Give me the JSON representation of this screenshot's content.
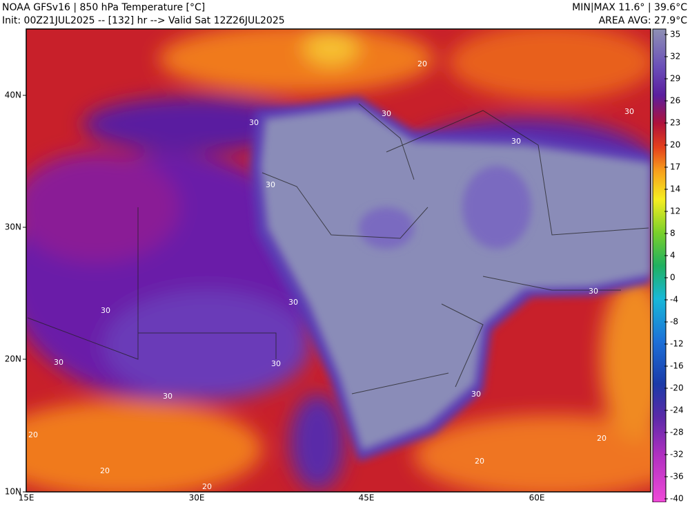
{
  "header": {
    "title": "NOAA GFSv16 | 850 hPa Temperature [°C]",
    "init": "Init: 00Z21JUL2025 -- [132] hr --> Valid Sat 12Z26JUL2025",
    "minmax": "MIN|MAX 11.6° | 39.6°C",
    "area_avg": "AREA AVG: 27.9°C"
  },
  "colorbar": {
    "labels": [
      35,
      32,
      29,
      26,
      23,
      20,
      17,
      14,
      12,
      8,
      4,
      0,
      -4,
      -8,
      -12,
      -16,
      -20,
      -24,
      -28,
      -32,
      -36,
      -40
    ]
  },
  "lat_labels": [
    "40N",
    "30N",
    "20N",
    "10N"
  ],
  "lon_labels": [
    "15E",
    "30E",
    "45E",
    "60E"
  ],
  "contour_labels": [
    "30",
    "30",
    "30",
    "30",
    "30",
    "30",
    "30",
    "30",
    "30",
    "30",
    "30",
    "30",
    "20",
    "20",
    "20",
    "20",
    "20",
    "20"
  ]
}
